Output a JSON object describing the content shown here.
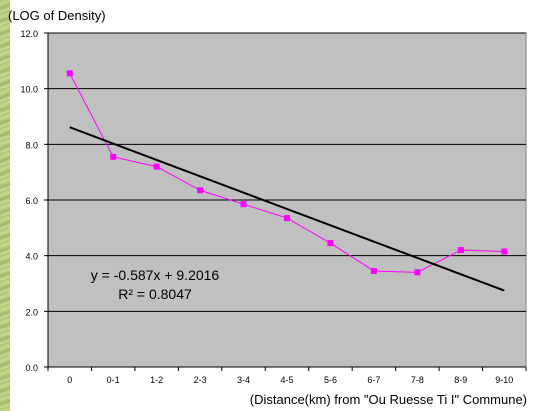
{
  "chart_data": {
    "type": "line",
    "title": "",
    "ylabel": "(LOG of Density)",
    "xlabel": "(Distance(km) from \"Ou Ruesse Ti I\" Commune)",
    "categories": [
      "0",
      "0-1",
      "1-2",
      "2-3",
      "3-4",
      "4-5",
      "5-6",
      "6-7",
      "7-8",
      "8-9",
      "9-10"
    ],
    "ylim": [
      0,
      12
    ],
    "yticks": [
      "0.0",
      "2.0",
      "4.0",
      "6.0",
      "8.0",
      "10.0",
      "12.0"
    ],
    "grid": true,
    "legend": "none",
    "series": [
      {
        "values": [
          10.55,
          7.55,
          7.2,
          6.35,
          5.85,
          5.35,
          4.45,
          3.45,
          3.4,
          4.2,
          4.15
        ]
      }
    ],
    "trendline": {
      "type": "linear",
      "slope": -0.587,
      "intercept": 9.2016,
      "equation": "y = -0.587x + 9.2016",
      "r_squared": "R² = 0.8047"
    },
    "colors": {
      "plot_background": "#c0c0c0",
      "series": "#ff00ff",
      "trendline": "#000000",
      "grid": "#000000"
    }
  }
}
